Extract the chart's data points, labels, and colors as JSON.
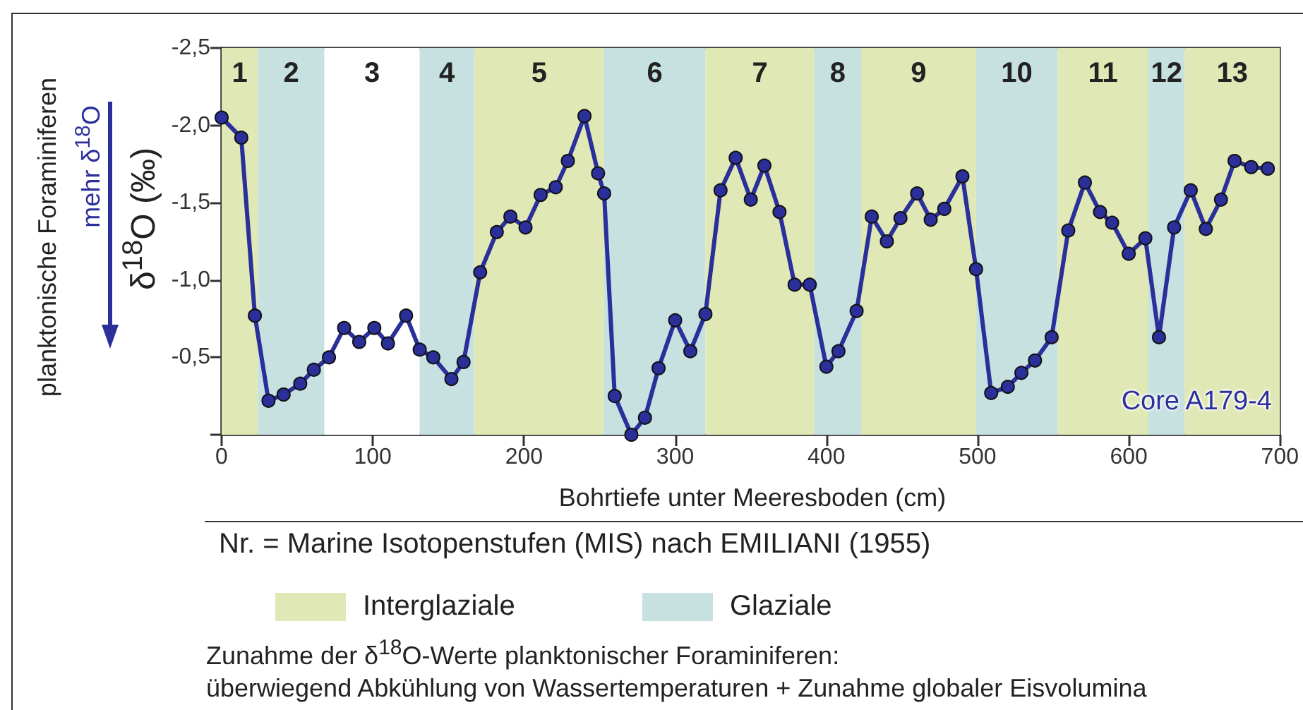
{
  "chart_data": {
    "type": "line",
    "xlabel": "Bohrtiefe unter Meeresboden (cm)",
    "ylabel": "δ$^{18}$O (‰)",
    "annotations": [
      "planktonische Foraminiferen",
      "mehr δ$^{18}$O",
      "Core A179-4",
      "Nr. = Marine Isotopenstufen (MIS) nach EMILIANI (1955)",
      "Interglaziale",
      "Glaziale",
      "Zunahme der δ$^{18}$O-Werte planktonischer Foraminiferen:",
      "überwiegend Abkühlung von Wassertemperaturen + Zunahme globaler Eisvolumina"
    ],
    "series": [
      {
        "color": "#2b2f9a",
        "x": [
          0,
          13,
          22,
          31,
          41,
          52,
          61,
          71,
          81,
          91,
          101,
          110,
          122,
          131,
          140,
          152,
          160,
          171,
          182,
          191,
          201,
          211,
          221,
          229,
          240,
          249,
          253,
          260,
          271,
          280,
          289,
          300,
          310,
          320,
          330,
          340,
          350,
          359,
          369,
          379,
          389,
          400,
          408,
          420,
          430,
          440,
          449,
          460,
          469,
          478,
          490,
          499,
          509,
          520,
          529,
          538,
          549,
          560,
          571,
          581,
          589,
          600,
          611,
          620,
          630,
          641,
          651,
          661,
          670,
          681,
          692
        ],
        "values": [
          -2.05,
          -1.92,
          -0.77,
          -0.22,
          -0.26,
          -0.33,
          -0.42,
          -0.5,
          -0.69,
          -0.6,
          -0.69,
          -0.59,
          -0.77,
          -0.55,
          -0.5,
          -0.36,
          -0.47,
          -1.05,
          -1.31,
          -1.41,
          -1.34,
          -1.55,
          -1.6,
          -1.77,
          -2.06,
          -1.69,
          -1.56,
          -0.25,
          0.0,
          -0.11,
          -0.43,
          -0.74,
          -0.54,
          -0.78,
          -1.58,
          -1.79,
          -1.52,
          -1.74,
          -1.44,
          -0.97,
          -0.97,
          -0.44,
          -0.54,
          -0.8,
          -1.41,
          -1.25,
          -1.4,
          -1.56,
          -1.39,
          -1.46,
          -1.67,
          -1.07,
          -0.27,
          -0.31,
          -0.4,
          -0.48,
          -0.63,
          -1.32,
          -1.63,
          -1.44,
          -1.37,
          -1.17,
          -1.27,
          -0.63,
          -1.34,
          -1.58,
          -1.33,
          -1.52,
          -1.77,
          -1.73,
          -1.72
        ]
      }
    ],
    "xlim": [
      0,
      700
    ],
    "xticks": [
      0,
      100,
      200,
      300,
      400,
      500,
      600,
      700
    ],
    "ylim": [
      0,
      -2.5
    ],
    "yticks": [
      {
        "value": 0,
        "label": null
      },
      {
        "value": -0.5,
        "label": "-0,5"
      },
      {
        "value": -1.0,
        "label": "-1,0"
      },
      {
        "value": -1.5,
        "label": "-1,5"
      },
      {
        "value": -2.0,
        "label": "-2,0"
      },
      {
        "value": -2.5,
        "label": "-2,5"
      }
    ],
    "bands": [
      {
        "axis": "x",
        "from": 0,
        "to": 24,
        "label": "1",
        "color": "#e0e8b6"
      },
      {
        "axis": "x",
        "from": 24,
        "to": 68,
        "label": "2",
        "color": "#c7e0e0"
      },
      {
        "axis": "x",
        "from": 68,
        "to": 131,
        "label": "3",
        "color": "#ffffff"
      },
      {
        "axis": "x",
        "from": 131,
        "to": 167,
        "label": "4",
        "color": "#c7e0e0"
      },
      {
        "axis": "x",
        "from": 167,
        "to": 253,
        "label": "5",
        "color": "#e0e8b6"
      },
      {
        "axis": "x",
        "from": 253,
        "to": 320,
        "label": "6",
        "color": "#c7e0e0"
      },
      {
        "axis": "x",
        "from": 320,
        "to": 392,
        "label": "7",
        "color": "#e0e8b6"
      },
      {
        "axis": "x",
        "from": 392,
        "to": 423,
        "label": "8",
        "color": "#c7e0e0"
      },
      {
        "axis": "x",
        "from": 423,
        "to": 499,
        "label": "9",
        "color": "#e0e8b6"
      },
      {
        "axis": "x",
        "from": 499,
        "to": 553,
        "label": "10",
        "color": "#c7e0e0"
      },
      {
        "axis": "x",
        "from": 553,
        "to": 613,
        "label": "11",
        "color": "#e0e8b6"
      },
      {
        "axis": "x",
        "from": 613,
        "to": 637,
        "label": "12",
        "color": "#c7e0e0"
      },
      {
        "axis": "x",
        "from": 637,
        "to": 700,
        "label": "13",
        "color": "#e0e8b6"
      }
    ],
    "grid": false,
    "marker": "circle",
    "line_style": "solid"
  }
}
